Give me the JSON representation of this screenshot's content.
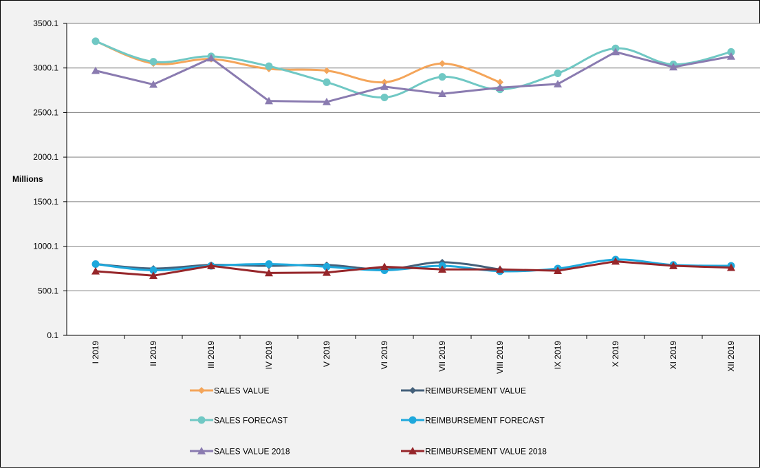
{
  "chart_data": {
    "type": "line",
    "ylabel": "Millions",
    "ylim": [
      0.1,
      3500.1
    ],
    "yticks": [
      "3500.1",
      "3000.1",
      "2500.1",
      "2000.1",
      "1500.1",
      "1000.1",
      "500.1",
      "0.1"
    ],
    "ytick_values": [
      3500.1,
      3000.1,
      2500.1,
      2000.1,
      1500.1,
      1000.1,
      500.1,
      0.1
    ],
    "categories": [
      "I 2019",
      "II 2019",
      "III 2019",
      "IV 2019",
      "V 2019",
      "VI 2019",
      "VII 2019",
      "VIII 2019",
      "IX 2019",
      "X 2019",
      "XI 2019",
      "XII 2019"
    ],
    "grid": "horizontal",
    "legend_position": "bottom",
    "series": [
      {
        "name": "SALES VALUE",
        "color": "#f4a55a",
        "marker": "diamond",
        "smooth": true,
        "values": [
          3300,
          3050,
          3100,
          2990,
          2970,
          2840,
          3050,
          2840,
          null,
          null,
          null,
          null
        ]
      },
      {
        "name": "REIMBURSEMENT VALUE",
        "color": "#44607a",
        "marker": "diamond",
        "smooth": true,
        "values": [
          800,
          750,
          790,
          780,
          790,
          740,
          820,
          740,
          null,
          null,
          null,
          null
        ]
      },
      {
        "name": "SALES FORECAST",
        "color": "#70c8c4",
        "marker": "circle",
        "smooth": true,
        "values": [
          3300,
          3070,
          3130,
          3020,
          2840,
          2670,
          2900,
          2760,
          2940,
          3220,
          3040,
          3180
        ]
      },
      {
        "name": "REIMBURSEMENT FORECAST",
        "color": "#1ea8dc",
        "marker": "circle",
        "smooth": true,
        "values": [
          800,
          730,
          780,
          800,
          770,
          730,
          780,
          720,
          750,
          850,
          790,
          780
        ]
      },
      {
        "name": "SALES VALUE 2018",
        "color": "#8a7bb0",
        "marker": "triangle",
        "smooth": false,
        "values": [
          2970,
          2815,
          3110,
          2630,
          2620,
          2790,
          2710,
          2780,
          2820,
          3180,
          3010,
          3130
        ]
      },
      {
        "name": "REIMBURSEMENT VALUE 2018",
        "color": "#96262a",
        "marker": "triangle",
        "smooth": false,
        "values": [
          720,
          670,
          780,
          700,
          705,
          770,
          740,
          740,
          725,
          830,
          780,
          760
        ]
      }
    ]
  }
}
